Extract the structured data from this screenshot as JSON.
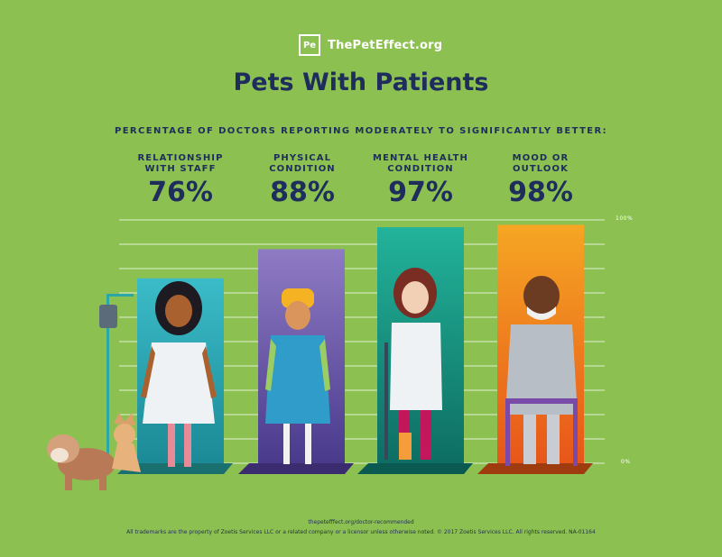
{
  "logo": {
    "mark": "Pe",
    "text": "ThePetEffect.org"
  },
  "title": "Pets With Patients",
  "subtitle": "PERCENTAGE OF DOCTORS REPORTING MODERATELY TO SIGNIFICANTLY BETTER:",
  "axis": {
    "top_label": "100%",
    "bottom_label": "0%"
  },
  "chart_data": {
    "type": "bar",
    "title": "Pets With Patients",
    "categories": [
      "RELATIONSHIP\nWITH STAFF",
      "PHYSICAL\nCONDITION",
      "MENTAL HEALTH\nCONDITION",
      "MOOD OR\nOUTLOOK"
    ],
    "values": [
      76,
      88,
      97,
      98
    ],
    "value_labels": [
      "76%",
      "88%",
      "97%",
      "98%"
    ],
    "ylim": [
      0,
      100
    ],
    "grid": true,
    "colors": {
      "bar_tops": [
        "#3bbcc8",
        "#8f7bc4",
        "#22b39a",
        "#f5a623"
      ],
      "bar_bottoms": [
        "#1b8a96",
        "#4a3a8c",
        "#0e6e63",
        "#e8561a"
      ],
      "shadows": [
        "#1a6f6f",
        "#3a2c6e",
        "#0b5a52",
        "#9e3c10"
      ]
    }
  },
  "footer": {
    "url": "thepetefffect.org/doctor-recommended",
    "legal": "All trademarks are the property of Zoetis Services LLC or a related company or a licensor unless otherwise noted. © 2017 Zoetis Services LLC. All rights reserved. NA-01164"
  }
}
